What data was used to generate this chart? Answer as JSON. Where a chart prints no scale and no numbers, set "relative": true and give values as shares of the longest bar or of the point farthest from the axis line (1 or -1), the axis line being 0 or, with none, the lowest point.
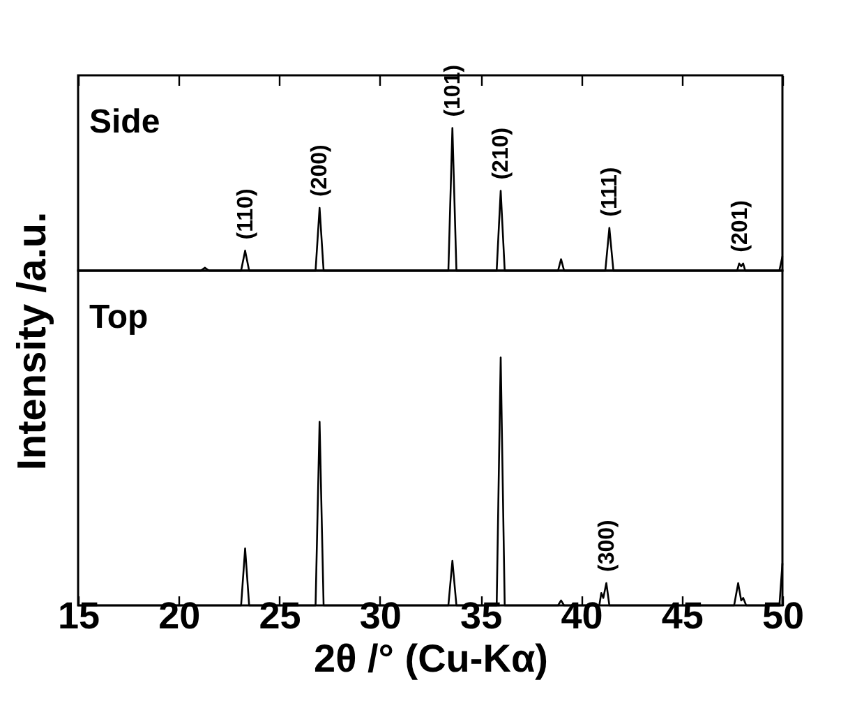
{
  "chart_data": [
    {
      "type": "line",
      "title": "Side",
      "ylabel": "Intensity /a.u.",
      "relative": true,
      "tick_labels": false,
      "legend": false,
      "grid": false,
      "marker": "none",
      "line_style": "solid",
      "xlim": [
        15,
        50
      ],
      "xticks": [
        15,
        20,
        25,
        30,
        35,
        40,
        45,
        50
      ],
      "series": [
        {
          "color": "#000000",
          "x": [
            15,
            21.1,
            21.3,
            21.5,
            23.1,
            23.3,
            23.5,
            26.8,
            27.0,
            27.2,
            33.4,
            33.6,
            33.8,
            35.8,
            36.0,
            36.2,
            38.85,
            39.0,
            39.15,
            41.2,
            41.4,
            41.6,
            47.75,
            47.85,
            47.95,
            48.05,
            48.15,
            49.85,
            50
          ],
          "values": [
            0,
            0,
            0.02,
            0,
            0,
            0.14,
            0,
            0,
            0.44,
            0,
            0,
            1,
            0,
            0,
            0.56,
            0,
            0,
            0.08,
            0,
            0,
            0.3,
            0,
            0,
            0.05,
            0.03,
            0.05,
            0,
            0,
            0.1
          ]
        }
      ],
      "annotations": [
        {
          "text": "(110)",
          "x": 23.3,
          "y": 0.14
        },
        {
          "text": "(200)",
          "x": 27.0,
          "y": 0.44
        },
        {
          "text": "(101)",
          "x": 33.6,
          "y": 1
        },
        {
          "text": "(210)",
          "x": 36.0,
          "y": 0.56
        },
        {
          "text": "(111)",
          "x": 41.4,
          "y": 0.3
        },
        {
          "text": "(201)",
          "x": 47.9,
          "y": 0.05
        }
      ]
    },
    {
      "type": "line",
      "title": "Top",
      "xlabel": "2θ /°  (Cu-Kα)",
      "relative": true,
      "tick_labels": "x",
      "legend": false,
      "grid": false,
      "marker": "none",
      "line_style": "solid",
      "xlim": [
        15,
        50
      ],
      "xticks": [
        15,
        20,
        25,
        30,
        35,
        40,
        45,
        50
      ],
      "series": [
        {
          "color": "#000000",
          "x": [
            15,
            23.1,
            23.3,
            23.5,
            26.8,
            27.0,
            27.2,
            33.4,
            33.6,
            33.8,
            35.8,
            36.0,
            36.2,
            38.85,
            39.0,
            39.15,
            40.9,
            41.0,
            41.1,
            41.25,
            41.4,
            47.6,
            47.8,
            47.95,
            48.05,
            48.2,
            49.85,
            50
          ],
          "values": [
            0,
            0,
            0.23,
            0,
            0,
            0.74,
            0,
            0,
            0.18,
            0,
            0,
            1,
            0,
            0,
            0.02,
            0,
            0,
            0.05,
            0.03,
            0.09,
            0,
            0,
            0.09,
            0.02,
            0.03,
            0,
            0,
            0.17
          ]
        }
      ],
      "annotations": [
        {
          "text": "(300)",
          "x": 41.25,
          "y": 0.09
        }
      ]
    }
  ]
}
